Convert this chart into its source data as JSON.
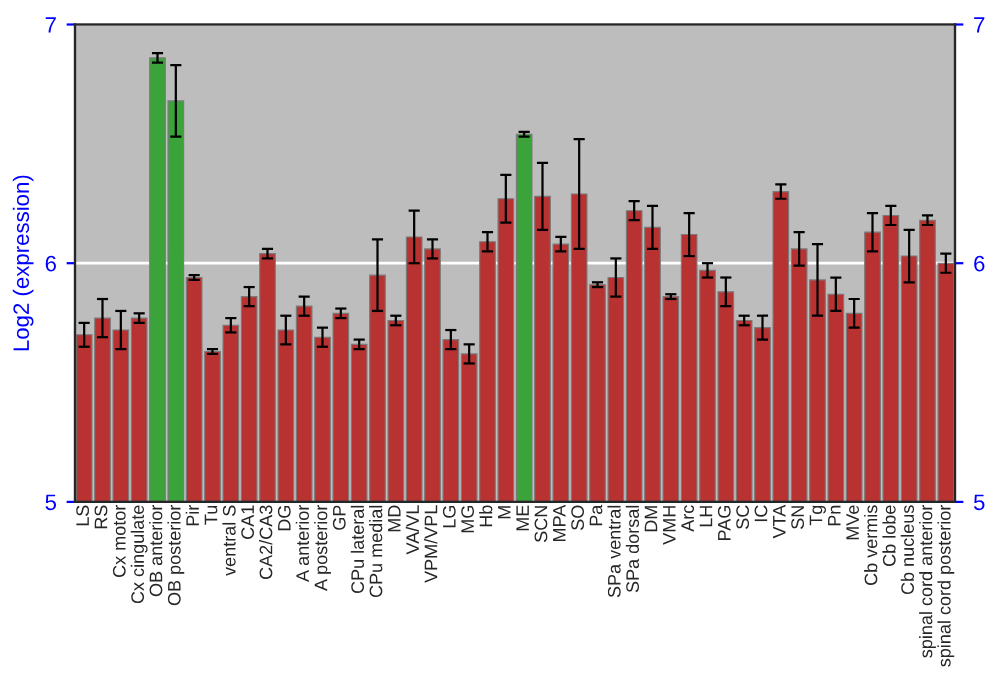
{
  "chart_data": {
    "type": "bar",
    "ylabel": "Log2 (expression)",
    "categories": [
      "LS",
      "RS",
      "Cx motor",
      "Cx cingulate",
      "OB anterior",
      "OB posterior",
      "Pir",
      "Tu",
      "ventral S",
      "CA1",
      "CA2/CA3",
      "DG",
      "A anterior",
      "A posterior",
      "GP",
      "CPu lateral",
      "CPu medial",
      "MD",
      "VA/VL",
      "VPM/VPL",
      "LG",
      "MG",
      "Hb",
      "M",
      "ME",
      "SCN",
      "MPA",
      "SO",
      "Pa",
      "SPa ventral",
      "SPa dorsal",
      "DM",
      "VMH",
      "Arc",
      "LH",
      "PAG",
      "SC",
      "IC",
      "VTA",
      "SN",
      "Tg",
      "Pn",
      "MVe",
      "Cb vermis",
      "Cb lobe",
      "Cb nucleus",
      "spinal cord anterior",
      "spinal cord posterior"
    ],
    "values": [
      5.7,
      5.77,
      5.72,
      5.77,
      6.86,
      6.68,
      5.94,
      5.63,
      5.74,
      5.86,
      6.04,
      5.72,
      5.82,
      5.69,
      5.79,
      5.66,
      5.95,
      5.76,
      6.11,
      6.06,
      5.68,
      5.62,
      6.09,
      6.27,
      6.54,
      6.28,
      6.08,
      6.29,
      5.91,
      5.94,
      6.22,
      6.15,
      5.86,
      6.12,
      5.97,
      5.88,
      5.76,
      5.73,
      6.3,
      6.06,
      5.93,
      5.87,
      5.79,
      6.13,
      6.2,
      6.03,
      6.18,
      6.0
    ],
    "errors": [
      0.05,
      0.08,
      0.08,
      0.02,
      0.02,
      0.15,
      0.01,
      0.01,
      0.03,
      0.04,
      0.02,
      0.06,
      0.04,
      0.04,
      0.02,
      0.02,
      0.15,
      0.02,
      0.11,
      0.04,
      0.04,
      0.04,
      0.04,
      0.1,
      0.01,
      0.14,
      0.03,
      0.23,
      0.01,
      0.08,
      0.04,
      0.09,
      0.01,
      0.09,
      0.03,
      0.06,
      0.02,
      0.05,
      0.03,
      0.07,
      0.15,
      0.07,
      0.06,
      0.08,
      0.04,
      0.11,
      0.02,
      0.04
    ],
    "colors": [
      "#b83232",
      "#b83232",
      "#b83232",
      "#b83232",
      "#3aa33a",
      "#3aa33a",
      "#b83232",
      "#b83232",
      "#b83232",
      "#b83232",
      "#b83232",
      "#b83232",
      "#b83232",
      "#b83232",
      "#b83232",
      "#b83232",
      "#b83232",
      "#b83232",
      "#b83232",
      "#b83232",
      "#b83232",
      "#b83232",
      "#b83232",
      "#b83232",
      "#3aa33a",
      "#b83232",
      "#b83232",
      "#b83232",
      "#b83232",
      "#b83232",
      "#b83232",
      "#b83232",
      "#b83232",
      "#b83232",
      "#b83232",
      "#b83232",
      "#b83232",
      "#b83232",
      "#b83232",
      "#b83232",
      "#b83232",
      "#b83232",
      "#b83232",
      "#b83232",
      "#b83232",
      "#b83232",
      "#b83232",
      "#b83232"
    ],
    "ylim": [
      5,
      7
    ],
    "yticks": [
      5,
      6,
      7
    ],
    "y2lim": [
      5,
      7
    ],
    "y2ticks": [
      5,
      6,
      7
    ],
    "grid": "y",
    "legend": false
  }
}
